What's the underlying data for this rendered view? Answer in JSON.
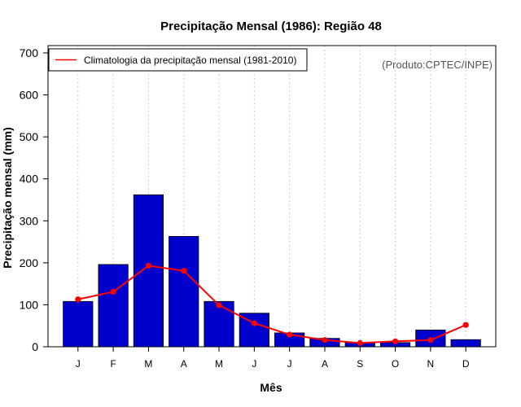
{
  "chart_data": {
    "type": "bar",
    "title": "Precipitação Mensal (1986): Região 48",
    "xlabel": "Mês",
    "ylabel": "Precipitação mensal (mm)",
    "ylim": [
      0,
      700
    ],
    "yticks": [
      0,
      100,
      200,
      300,
      400,
      500,
      600,
      700
    ],
    "categories": [
      "J",
      "F",
      "M",
      "A",
      "M",
      "J",
      "J",
      "A",
      "S",
      "O",
      "N",
      "D"
    ],
    "series": [
      {
        "name": "1986",
        "type": "bar",
        "color": "#0000cc",
        "values": [
          108,
          196,
          362,
          263,
          108,
          80,
          33,
          20,
          10,
          10,
          40,
          17
        ]
      },
      {
        "name": "Climatologia da precipitação mensal (1981-2010)",
        "type": "line",
        "color": "#ff0000",
        "values": [
          113,
          131,
          193,
          181,
          99,
          56,
          29,
          16,
          9,
          13,
          16,
          52
        ]
      }
    ],
    "grid": "vertical dotted",
    "legend": "top-left",
    "annotation": "(Produto:CPTEC/INPE)"
  }
}
